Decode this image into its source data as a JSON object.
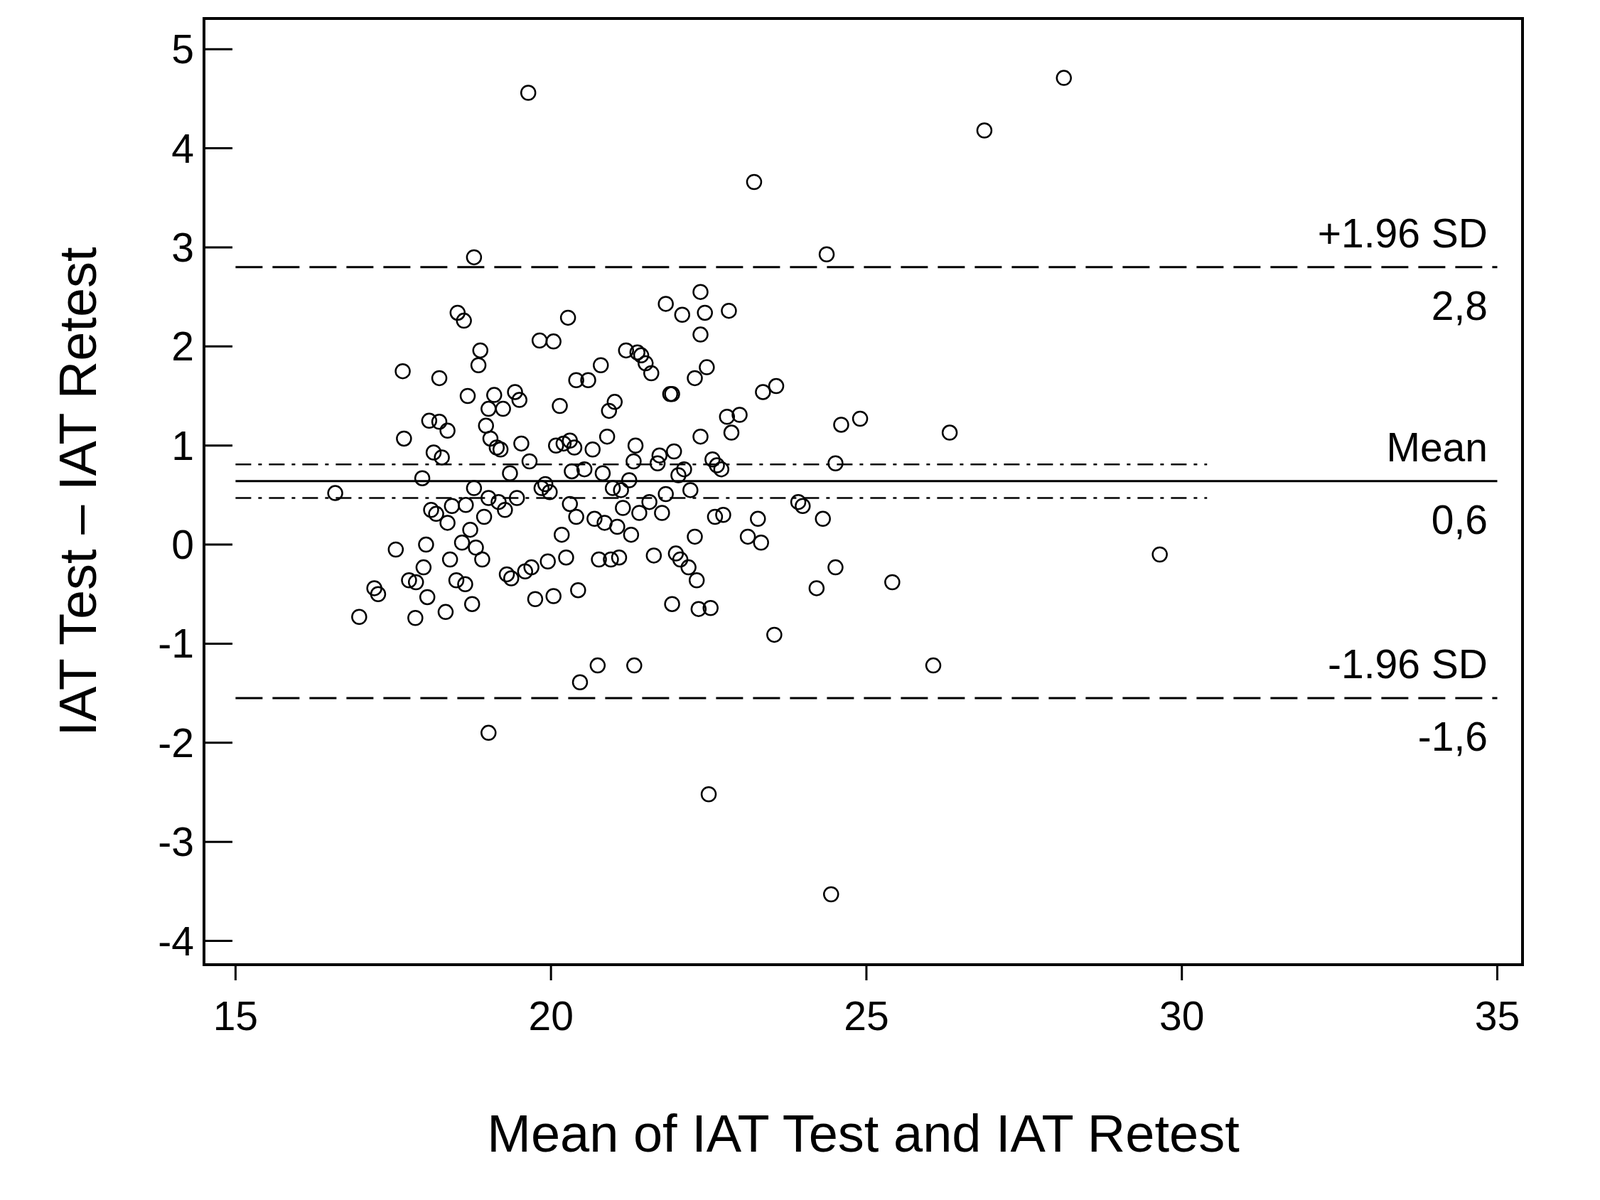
{
  "chart_data": {
    "type": "scatter",
    "x_label": "Mean of IAT Test and IAT Retest",
    "y_label": "IAT Test – IAT Retest",
    "xlim": [
      14.5,
      35.4
    ],
    "ylim": [
      -4.24,
      5.31
    ],
    "xticks": [
      15,
      20,
      25,
      30,
      35
    ],
    "yticks": [
      -4,
      -3,
      -2,
      -1,
      0,
      1,
      2,
      3,
      4,
      5
    ],
    "marker": "circle",
    "color": "#000000",
    "x": [
      16.58,
      16.96,
      17.2,
      17.26,
      17.54,
      17.65,
      17.67,
      17.75,
      17.85,
      17.86,
      17.96,
      17.98,
      18.02,
      18.04,
      18.07,
      18.1,
      18.14,
      18.18,
      18.23,
      18.23,
      18.27,
      18.33,
      18.36,
      18.36,
      18.4,
      18.43,
      18.5,
      18.52,
      18.59,
      18.62,
      18.64,
      18.65,
      18.68,
      18.72,
      18.75,
      18.78,
      18.78,
      18.81,
      18.85,
      18.88,
      18.91,
      18.94,
      18.97,
      19.01,
      19.01,
      19.01,
      19.04,
      19.1,
      19.14,
      19.17,
      19.2,
      19.24,
      19.27,
      19.3,
      19.35,
      19.37,
      19.43,
      19.46,
      19.5,
      19.53,
      19.59,
      19.64,
      19.66,
      19.69,
      19.75,
      19.82,
      19.85,
      19.91,
      19.95,
      19.98,
      20.04,
      20.04,
      20.08,
      20.14,
      20.17,
      20.2,
      20.24,
      20.27,
      20.3,
      20.3,
      20.33,
      20.37,
      20.4,
      20.4,
      20.43,
      20.46,
      20.53,
      20.59,
      20.66,
      20.69,
      20.74,
      20.76,
      20.79,
      20.82,
      20.85,
      20.89,
      20.92,
      20.95,
      20.98,
      21.01,
      21.05,
      21.08,
      21.11,
      21.14,
      21.19,
      21.24,
      21.27,
      21.31,
      21.32,
      21.34,
      21.37,
      21.4,
      21.43,
      21.5,
      21.56,
      21.59,
      21.63,
      21.69,
      21.72,
      21.76,
      21.82,
      21.82,
      21.89,
      21.92,
      21.92,
      21.95,
      21.98,
      22.02,
      22.05,
      22.08,
      22.11,
      22.18,
      22.21,
      22.28,
      22.28,
      22.31,
      22.34,
      22.37,
      22.37,
      22.37,
      22.44,
      22.47,
      22.5,
      22.53,
      22.56,
      22.6,
      22.63,
      22.7,
      22.73,
      22.79,
      22.82,
      22.86,
      22.99,
      23.12,
      23.22,
      23.28,
      23.33,
      23.36,
      23.54,
      23.57,
      23.92,
      23.99,
      24.21,
      24.31,
      24.37,
      24.44,
      24.51,
      24.51,
      24.6,
      24.9,
      25.41,
      26.06,
      26.32,
      26.87,
      28.13,
      29.65
    ],
    "values": [
      0.52,
      -0.73,
      -0.44,
      -0.5,
      -0.05,
      1.75,
      1.07,
      -0.36,
      -0.74,
      -0.38,
      0.67,
      -0.23,
      0,
      -0.53,
      1.25,
      0.35,
      0.93,
      0.31,
      1.68,
      1.24,
      0.88,
      -0.68,
      1.15,
      0.22,
      -0.15,
      0.39,
      -0.36,
      2.34,
      0.02,
      2.26,
      -0.4,
      0.4,
      1.5,
      0.15,
      -0.6,
      2.9,
      0.57,
      -0.03,
      1.81,
      1.96,
      -0.15,
      0.28,
      1.2,
      1.37,
      -1.9,
      0.47,
      1.07,
      1.51,
      0.98,
      0.43,
      0.96,
      1.37,
      0.35,
      -0.3,
      0.72,
      -0.34,
      1.54,
      0.47,
      1.46,
      1.02,
      -0.27,
      4.56,
      0.84,
      -0.23,
      -0.55,
      2.06,
      0.57,
      0.61,
      -0.17,
      0.53,
      2.05,
      -0.52,
      1.0,
      1.4,
      0.1,
      1.02,
      -0.13,
      2.29,
      0.41,
      1.05,
      0.74,
      0.98,
      0.28,
      1.66,
      -0.46,
      -1.39,
      0.76,
      1.66,
      0.96,
      0.26,
      -1.22,
      -0.15,
      1.81,
      0.72,
      0.22,
      1.09,
      1.35,
      -0.15,
      0.57,
      1.44,
      0.18,
      -0.13,
      0.55,
      0.37,
      1.96,
      0.65,
      0.1,
      0.84,
      -1.22,
      1.0,
      1.94,
      0.32,
      1.91,
      1.83,
      0.43,
      1.73,
      -0.11,
      0.82,
      0.9,
      0.32,
      2.43,
      0.51,
      1.52,
      1.52,
      -0.6,
      0.94,
      -0.09,
      0.7,
      -0.15,
      2.32,
      0.76,
      -0.23,
      0.55,
      1.68,
      0.08,
      -0.36,
      -0.65,
      2.55,
      2.12,
      1.09,
      2.34,
      1.79,
      -2.52,
      -0.64,
      0.86,
      0.28,
      0.8,
      0.76,
      0.3,
      1.29,
      2.36,
      1.13,
      1.31,
      0.08,
      3.66,
      0.26,
      0.02,
      1.54,
      -0.91,
      1.6,
      0.43,
      0.39,
      -0.44,
      0.26,
      2.93,
      -3.53,
      0.82,
      -0.23,
      1.21,
      1.27,
      -0.38,
      -1.22,
      1.13,
      4.18,
      4.71,
      -0.1
    ],
    "lines": [
      {
        "name": "+1.96 SD",
        "label": "2,8",
        "value": 2.8,
        "line_style": "dashed",
        "x_range": [
          15,
          35
        ]
      },
      {
        "name": "Mean",
        "label": "0,6",
        "value": 0.64,
        "line_style": "solid",
        "x_range": [
          15,
          35
        ]
      },
      {
        "name": "-1.96 SD",
        "label": "-1,6",
        "value": -1.55,
        "line_style": "dashed",
        "x_range": [
          15,
          35
        ]
      }
    ],
    "mean_ci": {
      "values": [
        0.47,
        0.81
      ],
      "line_style": "dashdot",
      "x_range": [
        15,
        30.4
      ]
    }
  }
}
